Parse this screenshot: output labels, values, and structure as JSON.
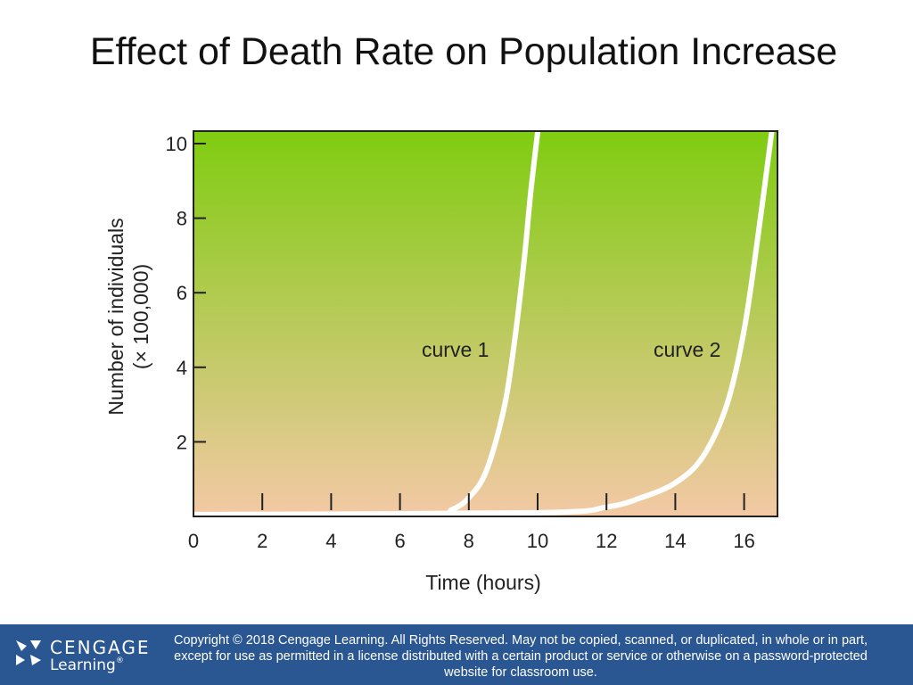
{
  "slide": {
    "title": "Effect of Death Rate on Population Increase"
  },
  "colors": {
    "plot_top": "#7fcc10",
    "plot_bottom": "#f3c9a5",
    "curve": "#ffffff",
    "footer_bg": "#2a5692"
  },
  "chart_data": {
    "type": "line",
    "xlabel": "Time (hours)",
    "ylabel": "Number of individuals",
    "ylabel_unit": "(× 100,000)",
    "xlim": [
      0,
      17
    ],
    "ylim": [
      0,
      10.3
    ],
    "xticks": [
      "0",
      "2",
      "4",
      "6",
      "8",
      "10",
      "12",
      "14",
      "16"
    ],
    "yticks": [
      "2",
      "4",
      "6",
      "8",
      "10"
    ],
    "grid": false,
    "series": [
      {
        "name": "curve 1",
        "x": [
          0,
          6.8,
          7.5,
          8.0,
          8.5,
          9.0,
          9.3,
          9.6,
          9.8,
          10.0
        ],
        "y": [
          0.05,
          0.05,
          0.18,
          0.5,
          1.2,
          2.8,
          4.5,
          6.8,
          8.7,
          10.3
        ]
      },
      {
        "name": "curve 2",
        "x": [
          0,
          10.0,
          12.0,
          13.0,
          14.0,
          14.8,
          15.5,
          16.0,
          16.4,
          16.8
        ],
        "y": [
          0.05,
          0.1,
          0.25,
          0.5,
          0.9,
          1.6,
          3.0,
          5.0,
          7.5,
          10.3
        ]
      }
    ]
  },
  "footer": {
    "logo_word1": "CENGAGE",
    "logo_word2": "Learning",
    "logo_mark": "®",
    "copyright": "Copyright © 2018 Cengage Learning. All Rights Reserved. May not be copied, scanned, or duplicated, in whole or in part, except for use as permitted in a license distributed with a certain product or service or otherwise on a password-protected website for classroom use."
  }
}
